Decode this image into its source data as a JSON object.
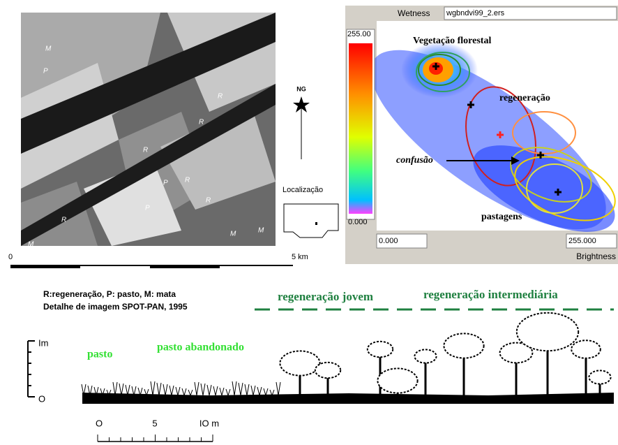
{
  "map": {
    "labels": [
      "M",
      "P",
      "R",
      "R",
      "R",
      "R",
      "P",
      "R",
      "P",
      "R",
      "M",
      "M",
      "M"
    ],
    "north": "NG",
    "location_label": "Localização",
    "scale": {
      "start": "0",
      "end": "5 km"
    }
  },
  "scatter_window": {
    "y_axis": "Wetness",
    "file": "wgbndvi99_2.ers",
    "colorbar_max": "255.00",
    "colorbar_min": "0.000",
    "x_min": "0.000",
    "x_max": "255.000",
    "x_axis": "Brightness",
    "annotations": {
      "forest": "Vegetação florestal",
      "regeneration": "regeneração",
      "confusion": "confusão",
      "pasture": "pastagens"
    }
  },
  "caption": {
    "legend": "R:regeneração, P: pasto, M: mata",
    "source": "Detalhe de imagem SPOT-PAN, 1995"
  },
  "profile": {
    "young": "regeneração jovem",
    "intermediate": "regeneração intermediária",
    "pasture": "pasto",
    "abandoned": "pasto abandonado",
    "height_top": "Im",
    "height_zero": "O",
    "scale": {
      "zero": "O",
      "five": "5",
      "ten": "IO m"
    }
  }
}
